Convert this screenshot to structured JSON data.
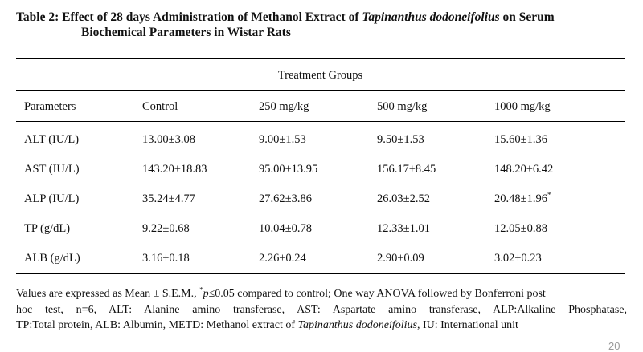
{
  "table": {
    "caption_prefix": "Table 2:  Effect of 28 days Administration of Methanol Extract of ",
    "caption_species": "Tapinanthus dodoneifolius",
    "caption_suffix": " on Serum",
    "caption_line2": "Biochemical Parameters in Wistar Rats",
    "group_header": "Treatment Groups",
    "columns": [
      "Parameters",
      "Control",
      "250 mg/kg",
      "500 mg/kg",
      "1000 mg/kg"
    ],
    "rows": [
      {
        "param": "ALT (IU/L)",
        "values": [
          "13.00±3.08",
          "9.00±1.53",
          "9.50±1.53",
          "15.60±1.36"
        ],
        "mark": ""
      },
      {
        "param": "AST (IU/L)",
        "values": [
          "143.20±18.83",
          "95.00±13.95",
          "156.17±8.45",
          "148.20±6.42"
        ],
        "mark": ""
      },
      {
        "param": "ALP (IU/L)",
        "values": [
          "35.24±4.77",
          "27.62±3.86",
          "26.03±2.52",
          "20.48±1.96"
        ],
        "mark": "*"
      },
      {
        "param": "TP (g/dL)",
        "values": [
          "9.22±0.68",
          "10.04±0.78",
          "12.33±1.01",
          "12.05±0.88"
        ],
        "mark": ""
      },
      {
        "param": "ALB (g/dL)",
        "values": [
          "3.16±0.18",
          "2.26±0.24",
          "2.90±0.09",
          "3.02±0.23"
        ],
        "mark": ""
      }
    ]
  },
  "footnote": {
    "part1": "Values are expressed as Mean ± S.E.M., ",
    "star": "*",
    "p_text": "p",
    "part2": "≤0.05 compared to control; One way ANOVA followed by Bonferroni post",
    "line2": "hoc test, n=6, ALT: Alanine amino transferase, AST: Aspartate amino transferase, ALP:Alkaline Phosphatase,",
    "line3_prefix": "TP:Total protein, ALB: Albumin, METD: Methanol extract of ",
    "line3_species": "Tapinanthus dodoneifolius",
    "line3_suffix": ", IU: International unit"
  },
  "page_number": "20"
}
